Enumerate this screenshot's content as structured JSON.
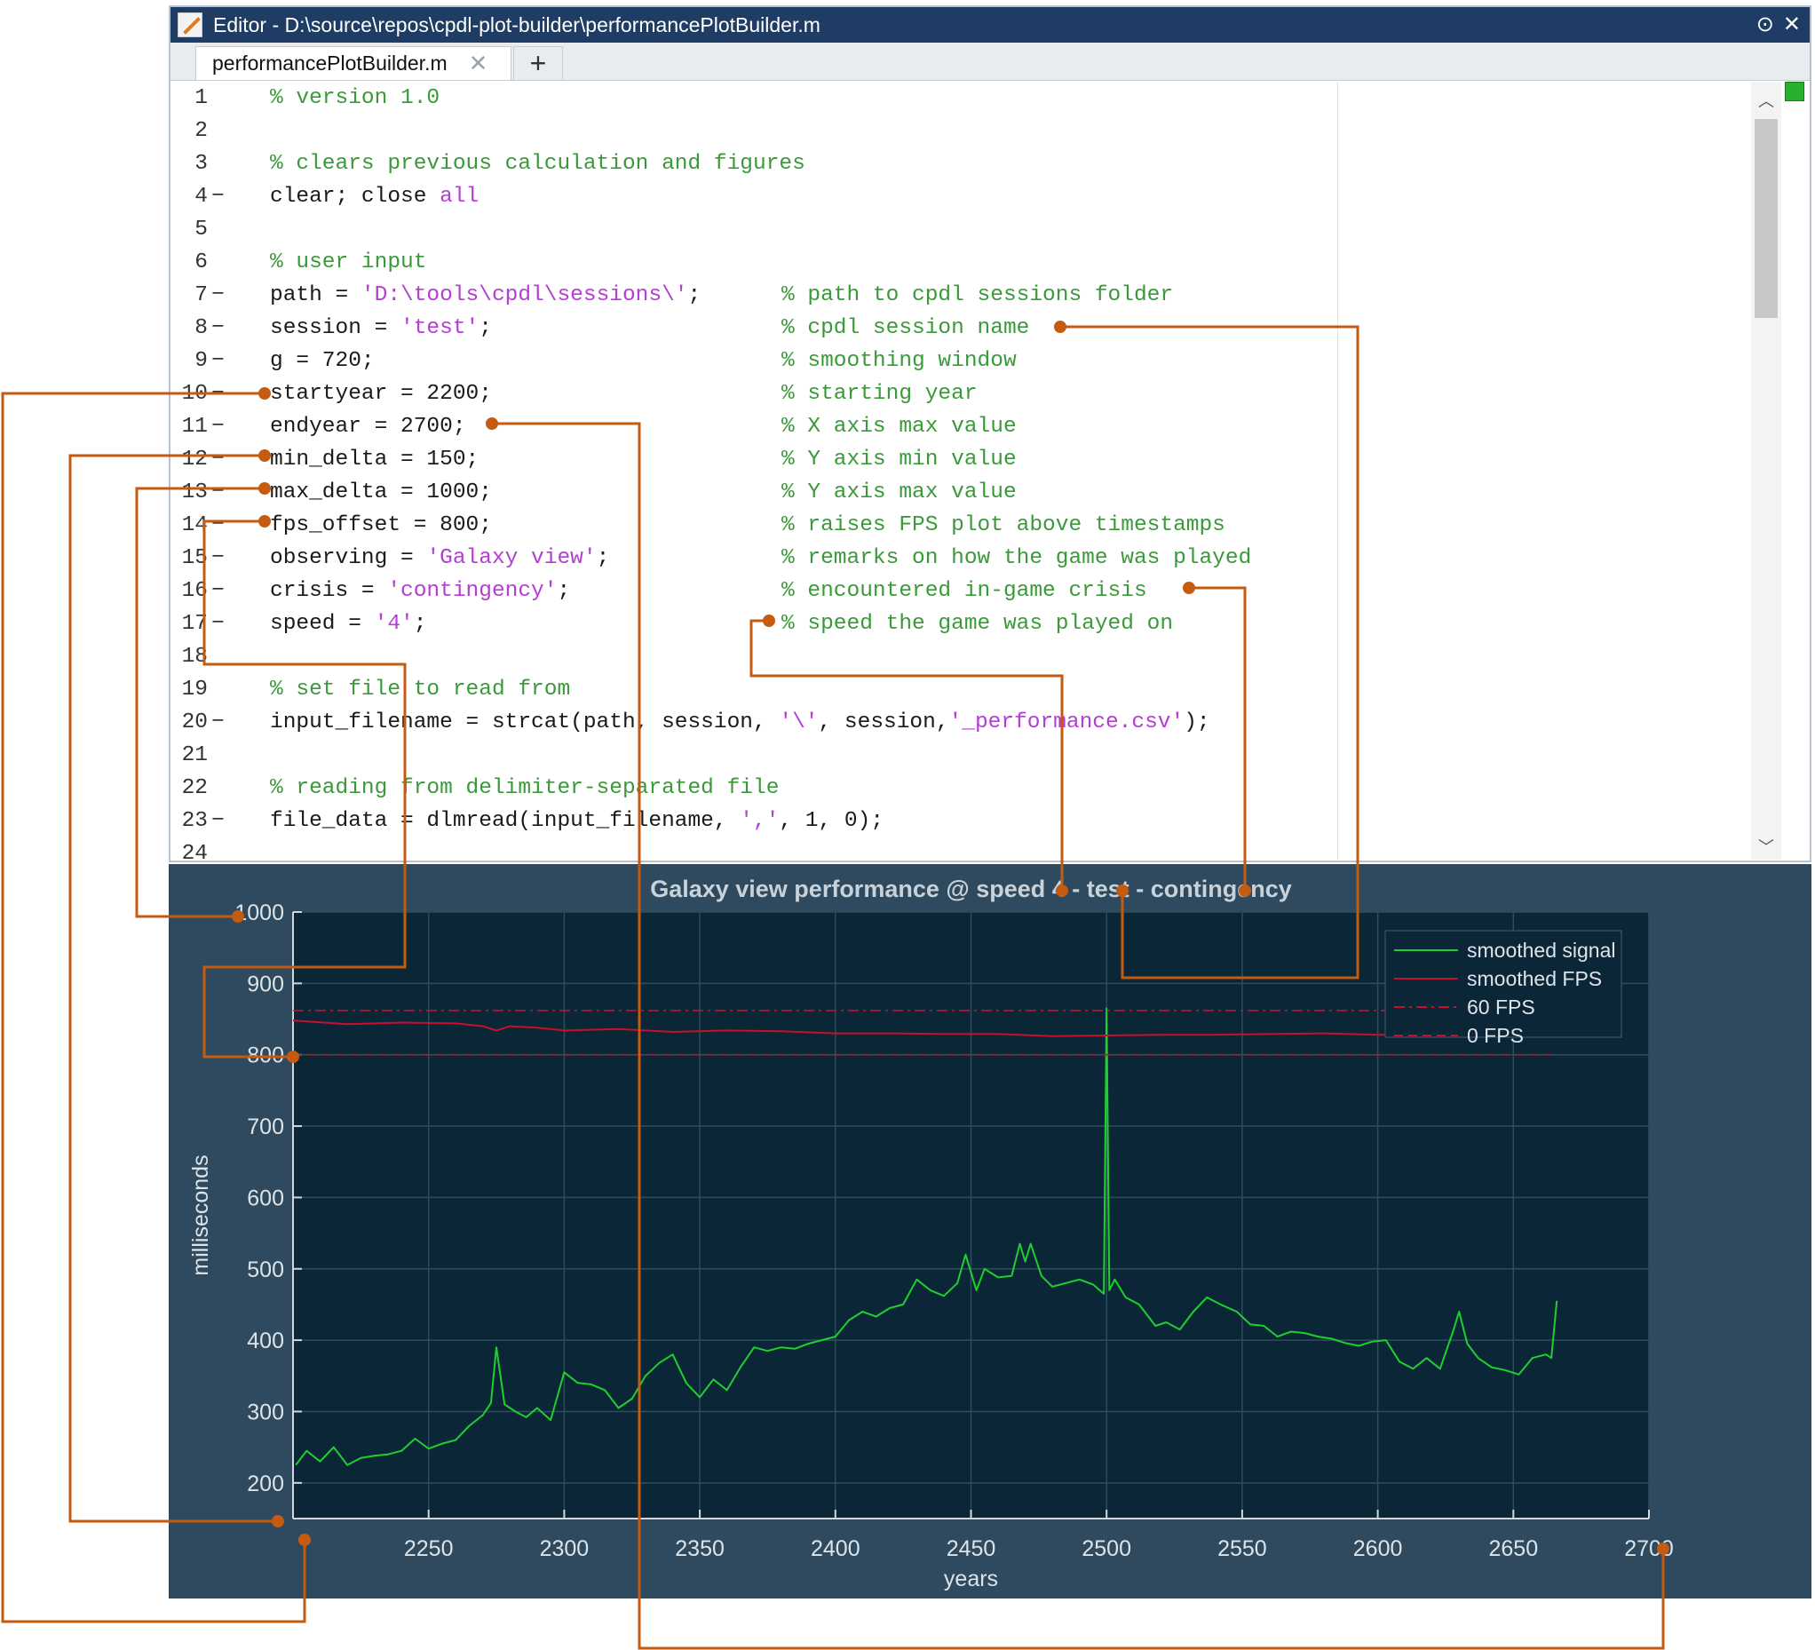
{
  "editor": {
    "title": "Editor - D:\\source\\repos\\cpdl-plot-builder\\performancePlotBuilder.m",
    "tab_label": "performancePlotBuilder.m",
    "tab_close": "✕",
    "add_tab": "+",
    "title_buttons": [
      "⊙",
      "✕"
    ],
    "lines": [
      {
        "n": "1",
        "dash": "",
        "code": [
          {
            "t": "% version 1.0",
            "c": "cmt"
          }
        ],
        "comment": ""
      },
      {
        "n": "2",
        "dash": "",
        "code": [],
        "comment": ""
      },
      {
        "n": "3",
        "dash": "",
        "code": [
          {
            "t": "% clears previous calculation and figures",
            "c": "cmt"
          }
        ],
        "comment": ""
      },
      {
        "n": "4",
        "dash": "−",
        "code": [
          {
            "t": "clear; close ",
            "c": ""
          },
          {
            "t": "all",
            "c": "str"
          }
        ],
        "comment": ""
      },
      {
        "n": "5",
        "dash": "",
        "code": [],
        "comment": ""
      },
      {
        "n": "6",
        "dash": "",
        "code": [
          {
            "t": "% user input",
            "c": "cmt"
          }
        ],
        "comment": ""
      },
      {
        "n": "7",
        "dash": "−",
        "code": [
          {
            "t": "path = ",
            "c": ""
          },
          {
            "t": "'D:\\tools\\cpdl\\sessions\\'",
            "c": "str"
          },
          {
            "t": ";",
            "c": ""
          }
        ],
        "comment": "% path to cpdl sessions folder"
      },
      {
        "n": "8",
        "dash": "−",
        "code": [
          {
            "t": "session = ",
            "c": ""
          },
          {
            "t": "'test'",
            "c": "str"
          },
          {
            "t": ";",
            "c": ""
          }
        ],
        "comment": "% cpdl session name"
      },
      {
        "n": "9",
        "dash": "−",
        "code": [
          {
            "t": "g = 720;",
            "c": ""
          }
        ],
        "comment": "% smoothing window"
      },
      {
        "n": "10",
        "dash": "−",
        "code": [
          {
            "t": "startyear = 2200;",
            "c": ""
          }
        ],
        "comment": "% starting year"
      },
      {
        "n": "11",
        "dash": "−",
        "code": [
          {
            "t": "endyear = 2700;",
            "c": ""
          }
        ],
        "comment": "% X axis max value"
      },
      {
        "n": "12",
        "dash": "−",
        "code": [
          {
            "t": "min_delta = 150;",
            "c": ""
          }
        ],
        "comment": "% Y axis min value"
      },
      {
        "n": "13",
        "dash": "−",
        "code": [
          {
            "t": "max_delta = 1000;",
            "c": ""
          }
        ],
        "comment": "% Y axis max value"
      },
      {
        "n": "14",
        "dash": "−",
        "code": [
          {
            "t": "fps_offset = 800;",
            "c": ""
          }
        ],
        "comment": "% raises FPS plot above timestamps"
      },
      {
        "n": "15",
        "dash": "−",
        "code": [
          {
            "t": "observing = ",
            "c": ""
          },
          {
            "t": "'Galaxy view'",
            "c": "str"
          },
          {
            "t": ";",
            "c": ""
          }
        ],
        "comment": "% remarks on how the game was played"
      },
      {
        "n": "16",
        "dash": "−",
        "code": [
          {
            "t": "crisis = ",
            "c": ""
          },
          {
            "t": "'contingency'",
            "c": "str"
          },
          {
            "t": ";",
            "c": ""
          }
        ],
        "comment": "% encountered in-game crisis"
      },
      {
        "n": "17",
        "dash": "−",
        "code": [
          {
            "t": "speed = ",
            "c": ""
          },
          {
            "t": "'4'",
            "c": "str"
          },
          {
            "t": ";",
            "c": ""
          }
        ],
        "comment": "% speed the game was played on"
      },
      {
        "n": "18",
        "dash": "",
        "code": [],
        "comment": ""
      },
      {
        "n": "19",
        "dash": "",
        "code": [
          {
            "t": "% set file to read from",
            "c": "cmt"
          }
        ],
        "comment": ""
      },
      {
        "n": "20",
        "dash": "−",
        "code": [
          {
            "t": "input_filename = strcat(path, session, ",
            "c": ""
          },
          {
            "t": "'\\'",
            "c": "str"
          },
          {
            "t": ", session,",
            "c": ""
          },
          {
            "t": "'_performance.csv'",
            "c": "str"
          },
          {
            "t": ");",
            "c": ""
          }
        ],
        "comment": ""
      },
      {
        "n": "21",
        "dash": "",
        "code": [],
        "comment": ""
      },
      {
        "n": "22",
        "dash": "",
        "code": [
          {
            "t": "% reading from delimiter-separated file",
            "c": "cmt"
          }
        ],
        "comment": ""
      },
      {
        "n": "23",
        "dash": "−",
        "code": [
          {
            "t": "file_data = dlmread(input_filename, ",
            "c": ""
          },
          {
            "t": "','",
            "c": "str"
          },
          {
            "t": ", 1, 0);",
            "c": ""
          }
        ],
        "comment": ""
      },
      {
        "n": "24",
        "dash": "",
        "code": [],
        "comment": ""
      }
    ]
  },
  "chart_data": {
    "type": "line",
    "title": "Galaxy view performance @ speed 4 - test - contingency",
    "xlabel": "years",
    "ylabel": "milliseconds",
    "xlim": [
      2200,
      2700
    ],
    "ylim": [
      150,
      1000
    ],
    "xticks": [
      2250,
      2300,
      2350,
      2400,
      2450,
      2500,
      2550,
      2600,
      2650,
      2700
    ],
    "yticks": [
      200,
      300,
      400,
      500,
      600,
      700,
      800,
      900,
      1000
    ],
    "grid": true,
    "legend_position": "top-right",
    "colors": {
      "smoothed_signal": "#1fcf2f",
      "smoothed_fps": "#c8102e",
      "fps60": "#c8102e",
      "fps0": "#c8102e",
      "bg": "#0b2636"
    },
    "series": [
      {
        "name": "smoothed signal",
        "style": "solid",
        "x": [
          2201,
          2205,
          2210,
          2215,
          2220,
          2225,
          2230,
          2235,
          2240,
          2245,
          2250,
          2255,
          2260,
          2265,
          2270,
          2273,
          2275,
          2278,
          2282,
          2286,
          2290,
          2295,
          2300,
          2305,
          2310,
          2315,
          2320,
          2325,
          2330,
          2335,
          2340,
          2345,
          2350,
          2355,
          2360,
          2365,
          2370,
          2375,
          2380,
          2385,
          2390,
          2395,
          2400,
          2405,
          2410,
          2415,
          2420,
          2425,
          2430,
          2435,
          2440,
          2445,
          2448,
          2452,
          2455,
          2460,
          2465,
          2468,
          2470,
          2472,
          2476,
          2480,
          2485,
          2490,
          2495,
          2499,
          2500,
          2501,
          2503,
          2507,
          2512,
          2518,
          2522,
          2527,
          2532,
          2537,
          2542,
          2548,
          2553,
          2558,
          2563,
          2568,
          2573,
          2578,
          2583,
          2588,
          2593,
          2598,
          2603,
          2608,
          2613,
          2618,
          2623,
          2628,
          2630,
          2633,
          2637,
          2642,
          2647,
          2652,
          2657,
          2662,
          2664,
          2666
        ],
        "y": [
          225,
          245,
          230,
          250,
          225,
          235,
          238,
          240,
          245,
          262,
          248,
          255,
          260,
          280,
          295,
          312,
          390,
          310,
          300,
          292,
          305,
          288,
          355,
          340,
          338,
          330,
          305,
          318,
          350,
          368,
          380,
          340,
          320,
          345,
          330,
          362,
          390,
          385,
          390,
          388,
          395,
          400,
          405,
          428,
          440,
          433,
          445,
          450,
          485,
          470,
          462,
          480,
          520,
          470,
          500,
          488,
          490,
          535,
          510,
          535,
          490,
          475,
          480,
          485,
          478,
          465,
          865,
          470,
          485,
          460,
          450,
          420,
          425,
          415,
          440,
          460,
          450,
          440,
          422,
          420,
          405,
          412,
          410,
          405,
          402,
          396,
          392,
          398,
          400,
          370,
          360,
          375,
          360,
          415,
          440,
          395,
          375,
          362,
          358,
          352,
          375,
          380,
          375,
          455
        ]
      },
      {
        "name": "smoothed FPS",
        "style": "solid",
        "x": [
          2200,
          2220,
          2240,
          2260,
          2270,
          2275,
          2280,
          2290,
          2300,
          2320,
          2340,
          2360,
          2380,
          2400,
          2420,
          2440,
          2460,
          2480,
          2500,
          2520,
          2540,
          2560,
          2580,
          2600,
          2620,
          2640,
          2665
        ],
        "y": [
          848,
          843,
          845,
          844,
          840,
          834,
          840,
          838,
          834,
          836,
          832,
          834,
          833,
          830,
          830,
          829,
          829,
          826,
          827,
          828,
          828,
          829,
          830,
          828,
          828,
          829,
          830
        ]
      },
      {
        "name": "60 FPS",
        "style": "dash-dot",
        "x": [
          2200,
          2665
        ],
        "y": [
          862,
          862
        ]
      },
      {
        "name": "0 FPS",
        "style": "dashed",
        "x": [
          2200,
          2665
        ],
        "y": [
          800,
          800
        ]
      }
    ]
  },
  "callouts": {
    "color": "#c55a11"
  }
}
